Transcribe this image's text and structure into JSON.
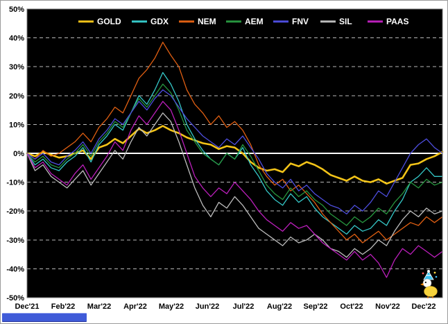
{
  "chart_data": {
    "type": "line",
    "title": "",
    "xlabel": "",
    "ylabel": "",
    "ylim": [
      -50,
      50
    ],
    "ytick_step": 10,
    "y_tick_suffix": "%",
    "grid": true,
    "legend_position": "top",
    "x_labels": [
      "Dec'21",
      "Feb'22",
      "Mar'22",
      "Apr'22",
      "May'22",
      "Jun'22",
      "Jul'22",
      "Aug'22",
      "Sep'22",
      "Oct'22",
      "Nov'22",
      "Dec'22"
    ],
    "colors": {
      "plot_bg": "#000000",
      "frame_bg": "#ffffff",
      "grid": "#b8b8b8",
      "zero_line": "#ffffff",
      "axis_text": "#000000",
      "legend_text": "#ffffff",
      "border": "#777777"
    },
    "series": [
      {
        "name": "GOLD",
        "color": "#f2c318",
        "width": 2.6,
        "values": [
          0,
          -1,
          0.5,
          -0.5,
          -1.5,
          -1,
          0,
          1,
          -2,
          2,
          3,
          5,
          3.5,
          6,
          8.5,
          7,
          8,
          9.5,
          8,
          7,
          5.5,
          4.5,
          3.5,
          3,
          1.5,
          2.5,
          2,
          0,
          -3,
          -5,
          -6,
          -5.5,
          -6.5,
          -3.5,
          -4.5,
          -3,
          -4,
          -5.5,
          -7.5,
          -8.5,
          -9.5,
          -8,
          -9.5,
          -10,
          -9,
          -10.5,
          -9.5,
          -8.5,
          -4,
          -3.5,
          -2,
          -1,
          0.5
        ]
      },
      {
        "name": "GDX",
        "color": "#35c8c8",
        "width": 1.3,
        "values": [
          0,
          -4,
          -2,
          -5,
          -6,
          -3,
          -1,
          2,
          -3,
          3,
          6,
          10,
          8,
          14,
          20,
          17,
          22,
          28,
          24,
          18,
          10,
          5,
          1,
          -2,
          -4,
          0,
          -2,
          2,
          -4,
          -8,
          -13,
          -16,
          -18,
          -14,
          -17,
          -15,
          -19,
          -22,
          -24,
          -26,
          -28,
          -25,
          -27,
          -26,
          -23,
          -25,
          -20,
          -16,
          -10,
          -8,
          -5,
          -8,
          -8
        ]
      },
      {
        "name": "NEM",
        "color": "#e05f12",
        "width": 1.3,
        "values": [
          0,
          -2,
          1,
          -1,
          0,
          2,
          4,
          7,
          4,
          9,
          12,
          16,
          14,
          20,
          26,
          29,
          33,
          38.5,
          34,
          30,
          22,
          17,
          14,
          10,
          13,
          9,
          11,
          8,
          3,
          -4,
          -8,
          -11,
          -9,
          -13,
          -11,
          -14,
          -17,
          -21,
          -24,
          -27,
          -30,
          -28,
          -31,
          -29,
          -27,
          -30,
          -28,
          -26,
          -24,
          -25,
          -22,
          -24,
          -22
        ]
      },
      {
        "name": "AEM",
        "color": "#27963f",
        "width": 1.3,
        "values": [
          0,
          -3,
          -1,
          -4,
          -5,
          -2,
          0,
          3,
          -1,
          4,
          7,
          11,
          9,
          14,
          19,
          16,
          20,
          24,
          21,
          15,
          8,
          4,
          0,
          -2,
          -4,
          0,
          -2,
          3,
          -1,
          -6,
          -11,
          -14,
          -16,
          -12,
          -15,
          -13,
          -16,
          -18,
          -21,
          -23,
          -25,
          -22,
          -24,
          -22,
          -19,
          -21,
          -17,
          -14,
          -10,
          -12,
          -9,
          -11,
          -10
        ]
      },
      {
        "name": "FNV",
        "color": "#4d4ddd",
        "width": 1.3,
        "values": [
          0,
          -2,
          0,
          -3,
          -4,
          -1,
          1,
          4,
          0,
          5,
          8,
          12,
          10,
          14,
          18,
          15,
          19,
          22,
          20,
          16,
          12,
          9,
          6,
          4,
          2,
          5,
          3,
          6,
          2,
          -2,
          -7,
          -10,
          -12,
          -9,
          -13,
          -11,
          -14,
          -16,
          -18,
          -19,
          -21,
          -18,
          -20,
          -17,
          -13,
          -15,
          -10,
          -5,
          0,
          3,
          5,
          2,
          0
        ]
      },
      {
        "name": "SIL",
        "color": "#bdbdbd",
        "width": 1.3,
        "values": [
          0,
          -6,
          -4,
          -8,
          -10,
          -12,
          -9,
          -6,
          -11,
          -7,
          -3,
          1,
          -2,
          4,
          9,
          6,
          10,
          14,
          11,
          4,
          -4,
          -12,
          -18,
          -22,
          -17,
          -19,
          -15,
          -18,
          -22,
          -26,
          -28,
          -30,
          -32,
          -29,
          -31,
          -30,
          -28,
          -30,
          -33,
          -34,
          -36,
          -33,
          -35,
          -33,
          -30,
          -32,
          -27,
          -23,
          -20,
          -22,
          -19,
          -21,
          -20
        ]
      },
      {
        "name": "PAAS",
        "color": "#bb1fbb",
        "width": 1.3,
        "values": [
          0,
          -5,
          -3,
          -7,
          -9,
          -11,
          -7,
          -4,
          -9,
          -5,
          -1,
          4,
          1,
          8,
          13,
          10,
          14,
          18,
          15,
          8,
          0,
          -8,
          -12,
          -15,
          -12,
          -14,
          -10,
          -13,
          -16,
          -20,
          -23,
          -25,
          -27,
          -24,
          -26,
          -25,
          -28,
          -31,
          -33,
          -35,
          -37,
          -34,
          -37,
          -35,
          -38,
          -43,
          -37,
          -33,
          -35,
          -32,
          -34,
          -36,
          -34
        ]
      }
    ]
  },
  "scrollbar": {
    "color": "#3f5bd8"
  },
  "icons": {
    "mascot": "party-chick-icon"
  }
}
